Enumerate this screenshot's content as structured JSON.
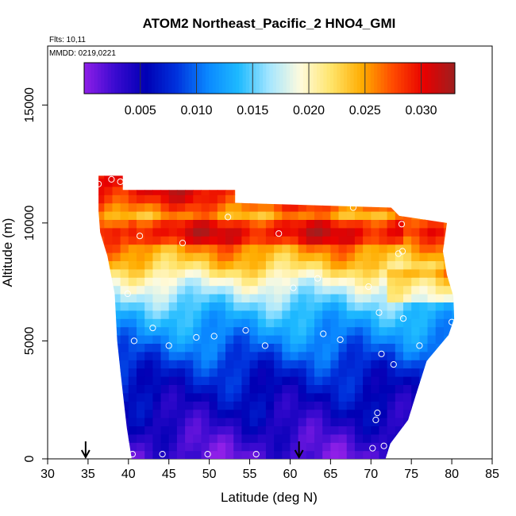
{
  "chart_data": {
    "type": "heatmap",
    "title": "ATOM2 Northeast_Pacific_2 HNO4_GMI",
    "annotations": [
      "Flts: 10,11",
      "MMDD: 0219,0221"
    ],
    "xlabel": "Latitude (deg N)",
    "ylabel": "Altitude (m)",
    "xlim": [
      30,
      85
    ],
    "ylim": [
      0,
      17500
    ],
    "x_ticks": [
      "30",
      "35",
      "40",
      "45",
      "50",
      "55",
      "60",
      "65",
      "70",
      "75",
      "80",
      "85"
    ],
    "y_ticks": [
      "0",
      "5000",
      "10000",
      "15000"
    ],
    "colorbar": {
      "range": [
        0.0,
        0.033
      ],
      "tick_values": [
        0.005,
        0.01,
        0.015,
        0.02,
        0.025,
        0.03
      ],
      "tick_labels": [
        "0.005",
        "0.010",
        "0.015",
        "0.020",
        "0.025",
        "0.030"
      ],
      "colors": [
        "#8f1fe8",
        "#3a0ad0",
        "#0000b4",
        "#0033dd",
        "#0a88ff",
        "#1ebaff",
        "#a5e6ff",
        "#fffbdd",
        "#ffe46a",
        "#ffac00",
        "#ff4a00",
        "#e80000",
        "#9e1f1f"
      ]
    },
    "profile_vertices": [
      [
        40.4,
        0
      ],
      [
        71.8,
        0
      ],
      [
        72.4,
        650
      ],
      [
        74.6,
        1650
      ],
      [
        75.6,
        2750
      ],
      [
        76.9,
        4150
      ],
      [
        79.6,
        5250
      ],
      [
        80.3,
        5950
      ],
      [
        80.2,
        6900
      ],
      [
        79.4,
        7800
      ],
      [
        78.9,
        8800
      ],
      [
        79.4,
        10000
      ],
      [
        73.5,
        10300
      ],
      [
        72.5,
        10650
      ],
      [
        53.2,
        10850
      ],
      [
        53.2,
        11400
      ],
      [
        39.3,
        11400
      ],
      [
        39.3,
        12000
      ],
      [
        36.3,
        12000
      ],
      [
        36.3,
        10500
      ],
      [
        36.5,
        9600
      ],
      [
        37.4,
        8600
      ],
      [
        38.3,
        7000
      ],
      [
        38.6,
        5000
      ],
      [
        39.2,
        3100
      ],
      [
        39.8,
        1300
      ]
    ],
    "value_bands": [
      {
        "alt": 250,
        "value": 0.002
      },
      {
        "alt": 900,
        "value": 0.003
      },
      {
        "alt": 1800,
        "value": 0.0045
      },
      {
        "alt": 2800,
        "value": 0.006
      },
      {
        "alt": 3700,
        "value": 0.0075
      },
      {
        "alt": 4500,
        "value": 0.0095
      },
      {
        "alt": 5300,
        "value": 0.0115
      },
      {
        "alt": 6100,
        "value": 0.0135
      },
      {
        "alt": 6800,
        "value": 0.016
      },
      {
        "alt": 7500,
        "value": 0.019
      },
      {
        "alt": 8200,
        "value": 0.023
      },
      {
        "alt": 9000,
        "value": 0.026
      },
      {
        "alt": 9600,
        "value": 0.028
      },
      {
        "alt": 10300,
        "value": 0.025
      },
      {
        "alt": 11000,
        "value": 0.029
      },
      {
        "alt": 11700,
        "value": 0.031
      }
    ],
    "observations": [
      [
        40.5,
        200
      ],
      [
        44.2,
        200
      ],
      [
        49.8,
        200
      ],
      [
        55.8,
        200
      ],
      [
        70.2,
        450
      ],
      [
        71.6,
        550
      ],
      [
        70.6,
        1650
      ],
      [
        70.8,
        1950
      ],
      [
        72.8,
        4000
      ],
      [
        71.3,
        4450
      ],
      [
        76.0,
        4800
      ],
      [
        56.9,
        4800
      ],
      [
        60.4,
        7250
      ],
      [
        63.4,
        7650
      ],
      [
        50.6,
        5200
      ],
      [
        48.4,
        5150
      ],
      [
        54.5,
        5450
      ],
      [
        45.0,
        4800
      ],
      [
        40.7,
        5000
      ],
      [
        43.0,
        5550
      ],
      [
        64.1,
        5300
      ],
      [
        66.2,
        5050
      ],
      [
        74.0,
        5950
      ],
      [
        80.0,
        5800
      ],
      [
        71.0,
        6200
      ],
      [
        69.7,
        7300
      ],
      [
        39.9,
        7000
      ],
      [
        46.7,
        9150
      ],
      [
        41.4,
        9450
      ],
      [
        58.6,
        9550
      ],
      [
        73.4,
        8700
      ],
      [
        73.9,
        8800
      ],
      [
        73.8,
        9950
      ],
      [
        52.3,
        10250
      ],
      [
        67.8,
        10650
      ],
      [
        35.2,
        10800
      ],
      [
        37.9,
        11850
      ],
      [
        39.0,
        11750
      ],
      [
        36.3,
        11650
      ]
    ],
    "markers": [
      34.7,
      61.1
    ],
    "grid": false,
    "legend": "colorbar-top-inside"
  }
}
